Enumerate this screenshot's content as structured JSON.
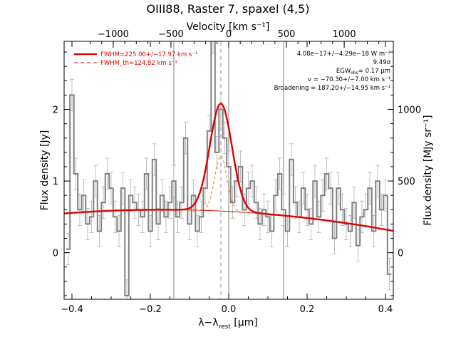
{
  "chart_data": {
    "type": "line",
    "title": "OIII88, Raster 7, spaxel (4,5)",
    "xlabel": "λ−λ",
    "xlabel_sub": "rest",
    "xlabel_unit": " [μm]",
    "ylabel": "Flux density [Jy]",
    "top_axis_label": "Velocity [km s⁻¹]",
    "right_axis_label": "Flux density [MJy sr⁻¹]",
    "xlim": [
      -0.42,
      0.42
    ],
    "ylim": [
      -0.65,
      2.95
    ],
    "x_ticks": [
      -0.4,
      -0.2,
      0.0,
      0.2,
      0.4
    ],
    "x_tick_labels": [
      "−0.4",
      "−0.2",
      "0.0",
      "0.2",
      "0.4"
    ],
    "y_ticks": [
      0,
      1,
      2
    ],
    "y_tick_labels": [
      "0",
      "1",
      "2"
    ],
    "top_ticks_kms": [
      -1000,
      -500,
      0,
      500,
      1000
    ],
    "top_tick_labels": [
      "−1000",
      "−500",
      "0",
      "500",
      "1000"
    ],
    "right_ticks": [
      0,
      500,
      1000
    ],
    "right_tick_labels": [
      "0",
      "500",
      "1000"
    ],
    "right_axis_jy_per_unit": 0.002,
    "rest_wavelength_um": 88.356,
    "vertical_lines_x": [
      -0.14,
      0.0,
      0.14
    ],
    "center_line_x": -0.02,
    "legend": [
      {
        "label": "FWHM=225.00+/−17.97 km s⁻¹",
        "style": "solid",
        "color": "#e00000"
      },
      {
        "label": "FWHM_th=124.82 km s⁻¹",
        "style": "dashed",
        "color": "#e00000"
      }
    ],
    "annotations": [
      "4.08e−17+/−4.29e−18 W m⁻²",
      "9.49σ",
      "EGW",
      "obs",
      "= 0.17 μm",
      "v = −70.30+/−7.00 km s⁻¹",
      "Broadening = 187.20+/−14.95 km s⁻¹"
    ],
    "model": {
      "continuum_center": -0.17,
      "continuum_peak": 0.6,
      "continuum_curvature": 0.85,
      "line_center": -0.02,
      "line_amplitude": 1.5,
      "line_sigma": 0.0282,
      "thermal_amplitude": 0.77,
      "thermal_sigma": 0.0156
    },
    "colors": {
      "data": "#808080",
      "error": "#b0b0b0",
      "fit": "#e00000",
      "thermal": "#e08020",
      "vlines": "#808080"
    },
    "series": [
      {
        "name": "data",
        "x": [
          -0.41,
          -0.4,
          -0.39,
          -0.38,
          -0.37,
          -0.36,
          -0.35,
          -0.34,
          -0.33,
          -0.32,
          -0.31,
          -0.3,
          -0.29,
          -0.28,
          -0.27,
          -0.26,
          -0.25,
          -0.24,
          -0.23,
          -0.22,
          -0.21,
          -0.2,
          -0.19,
          -0.18,
          -0.17,
          -0.16,
          -0.15,
          -0.14,
          -0.13,
          -0.12,
          -0.11,
          -0.1,
          -0.09,
          -0.08,
          -0.07,
          -0.06,
          -0.05,
          -0.04,
          -0.03,
          -0.02,
          -0.01,
          0.0,
          0.01,
          0.02,
          0.03,
          0.04,
          0.05,
          0.06,
          0.07,
          0.08,
          0.09,
          0.1,
          0.11,
          0.12,
          0.13,
          0.14,
          0.15,
          0.16,
          0.17,
          0.18,
          0.19,
          0.2,
          0.21,
          0.22,
          0.23,
          0.24,
          0.25,
          0.26,
          0.27,
          0.28,
          0.29,
          0.3,
          0.31,
          0.32,
          0.33,
          0.34,
          0.35,
          0.36,
          0.37,
          0.38,
          0.39,
          0.4,
          0.41
        ],
        "y": [
          0.05,
          2.2,
          1.1,
          0.6,
          0.8,
          0.4,
          0.5,
          1.0,
          0.3,
          0.7,
          1.1,
          0.9,
          0.5,
          0.3,
          0.9,
          -0.6,
          0.8,
          0.7,
          0.6,
          0.5,
          1.1,
          0.3,
          1.3,
          0.4,
          0.8,
          0.5,
          0.7,
          1.0,
          0.5,
          0.7,
          1.6,
          0.4,
          0.8,
          0.3,
          0.5,
          0.9,
          1.7,
          3.0,
          1.4,
          2.0,
          1.6,
          1.2,
          0.7,
          1.0,
          1.2,
          0.6,
          0.9,
          1.0,
          0.7,
          0.4,
          0.6,
          0.5,
          0.3,
          0.8,
          1.1,
          0.6,
          0.3,
          1.3,
          0.7,
          0.5,
          0.9,
          0.6,
          0.4,
          1.0,
          0.5,
          0.8,
          1.1,
          0.9,
          0.2,
          0.9,
          0.6,
          0.4,
          0.3,
          0.7,
          0.1,
          0.5,
          0.6,
          0.9,
          0.3,
          1.0,
          0.6,
          0.8,
          -0.3
        ],
        "err": 0.22
      }
    ]
  }
}
